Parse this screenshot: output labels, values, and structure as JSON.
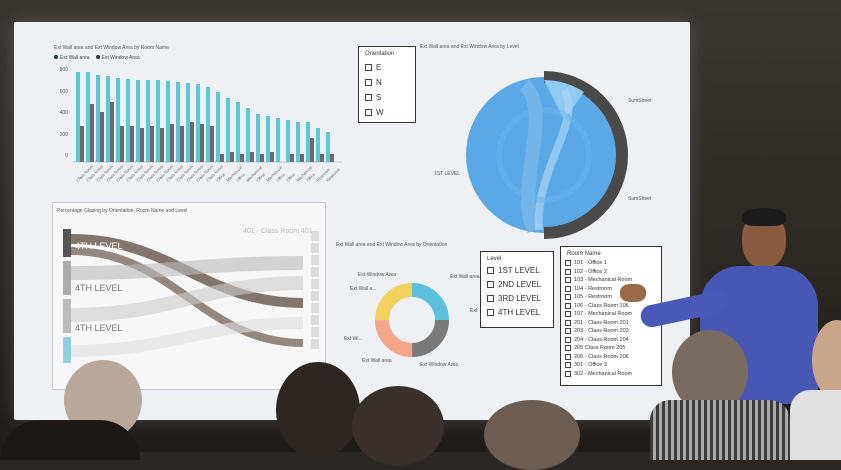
{
  "bar_panel": {
    "title": "Ext Wall area and Ext Window Area by Room Name",
    "legend": [
      "Ext Wall area",
      "Ext Window Area"
    ],
    "y_ticks": [
      "800",
      "600",
      "400",
      "200",
      "0"
    ]
  },
  "orientation_slicer": {
    "title": "Orientation",
    "items": [
      "E",
      "N",
      "S",
      "W"
    ]
  },
  "pie_panel": {
    "title": "Ext Wall area and Ext Window Area by Level",
    "labels": [
      "SumSheet",
      "1ST LEVEL",
      "SumSheet"
    ]
  },
  "sankey_panel": {
    "title": "Percentage Glazing by Orientation, Room Name and Level",
    "left_labels": [
      "4TH LEVEL",
      "4TH LEVEL",
      "4TH LEVEL"
    ],
    "right_label": "401 - Class Room 401"
  },
  "donut_panel": {
    "title": "Ext Wall area and Ext Window Area by Orientation",
    "labels": [
      "Ext Window Area",
      "Ext Wall area",
      "Ext Wall a...",
      "Ext",
      "Ext Wi...",
      "Ext Wall area",
      "Ext Window Area"
    ],
    "colors": [
      "#5bc0de",
      "#7a7a7a",
      "#f4a58a",
      "#f2d15c"
    ]
  },
  "level_slicer": {
    "title": "Level",
    "items": [
      "1ST LEVEL",
      "2ND LEVEL",
      "3RD LEVEL",
      "4TH LEVEL"
    ]
  },
  "room_slicer": {
    "title": "Room Name",
    "items": [
      "101 - Office 1",
      "102 - Office 2",
      "103 - Mechanical Room",
      "104 - Restroom",
      "105 - Restroom",
      "106 - Class Room 106",
      "107 - Mechanical Room",
      "201 - Class Room 201",
      "203 - Class Room 203",
      "204 - Class Room 204",
      "205 Class Room 205",
      "206 - Class Room 206",
      "301 - Office 3",
      "302 - Mechanical Room"
    ]
  }
}
